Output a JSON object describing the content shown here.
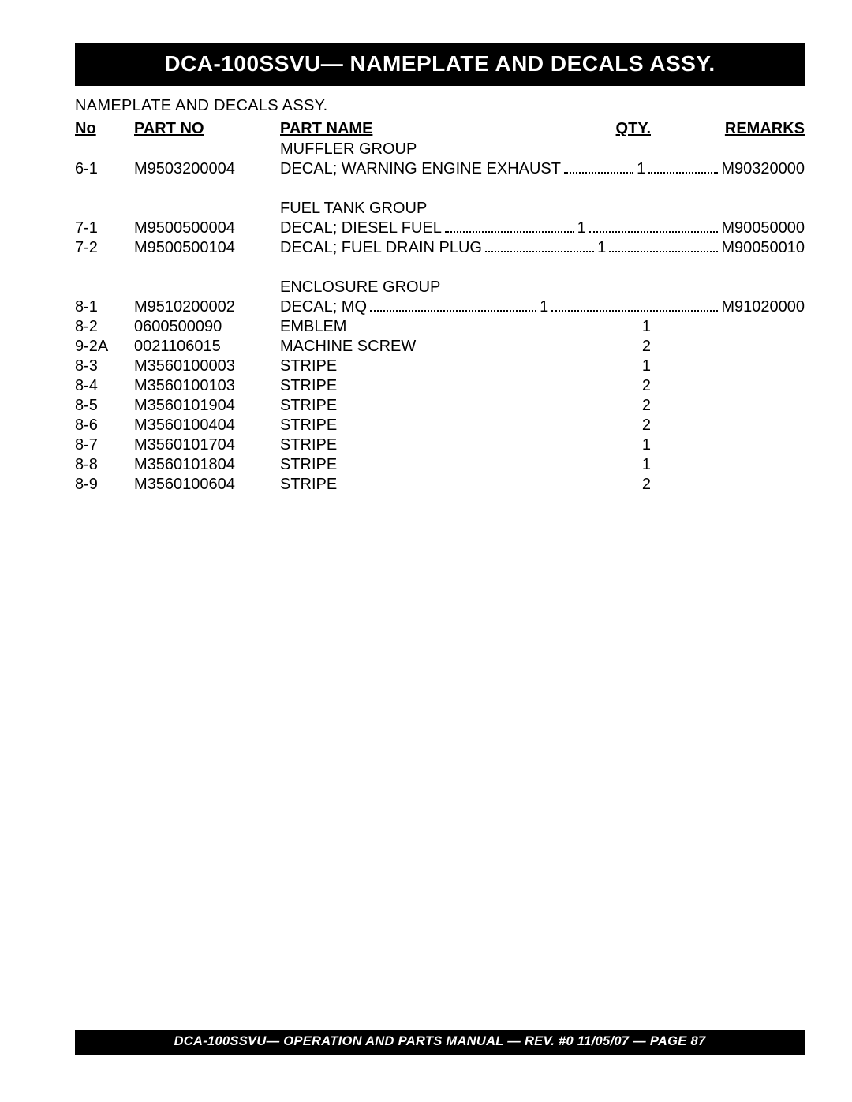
{
  "title": "DCA-100SSVU— NAMEPLATE  AND DECALS ASSY.",
  "subtitle": "NAMEPLATE AND DECALS ASSY.",
  "headers": {
    "no": "No",
    "partno": "PART NO",
    "name": "PART NAME",
    "qty": "QTY.",
    "remarks": "REMARKS"
  },
  "groups": [
    {
      "name": "MUFFLER GROUP",
      "gap_before": false,
      "rows": [
        {
          "no": "6-1",
          "partno": "M9503200004",
          "name": "DECAL; WARNING ENGINE EXHAUST",
          "qty": "1",
          "remarks": "M90320000",
          "leader": true
        }
      ]
    },
    {
      "name": "FUEL TANK GROUP",
      "gap_before": true,
      "rows": [
        {
          "no": "7-1",
          "partno": "M9500500004",
          "name": "DECAL; DIESEL FUEL",
          "qty": "1",
          "remarks": "M90050000",
          "leader": true
        },
        {
          "no": "7-2",
          "partno": "M9500500104",
          "name": "DECAL; FUEL DRAIN PLUG",
          "qty": "1",
          "remarks": "M90050010",
          "leader": true
        }
      ]
    },
    {
      "name": "ENCLOSURE GROUP",
      "gap_before": true,
      "rows": [
        {
          "no": "8-1",
          "partno": "M9510200002",
          "name": "DECAL; MQ",
          "qty": "1",
          "remarks": "M91020000",
          "leader": true
        },
        {
          "no": "8-2",
          "partno": "0600500090",
          "name": "EMBLEM",
          "qty": "1",
          "remarks": "",
          "leader": false
        },
        {
          "no": "9-2A",
          "partno": "0021106015",
          "name": "MACHINE SCREW",
          "qty": "2",
          "remarks": "",
          "leader": false
        },
        {
          "no": "8-3",
          "partno": "M3560100003",
          "name": "STRIPE",
          "qty": "1",
          "remarks": "",
          "leader": false
        },
        {
          "no": "8-4",
          "partno": "M3560100103",
          "name": "STRIPE",
          "qty": "2",
          "remarks": "",
          "leader": false
        },
        {
          "no": "8-5",
          "partno": "M3560101904",
          "name": "STRIPE",
          "qty": "2",
          "remarks": "",
          "leader": false
        },
        {
          "no": "8-6",
          "partno": "M3560100404",
          "name": "STRIPE",
          "qty": "2",
          "remarks": "",
          "leader": false
        },
        {
          "no": "8-7",
          "partno": "M3560101704",
          "name": "STRIPE",
          "qty": "1",
          "remarks": "",
          "leader": false
        },
        {
          "no": "8-8",
          "partno": "M3560101804",
          "name": "STRIPE",
          "qty": "1",
          "remarks": "",
          "leader": false
        },
        {
          "no": "8-9",
          "partno": "M3560100604",
          "name": "STRIPE",
          "qty": "2",
          "remarks": "",
          "leader": false
        }
      ]
    }
  ],
  "footer": "DCA-100SSVU— OPERATION AND PARTS MANUAL — REV. #0  11/05/07 — PAGE 87"
}
